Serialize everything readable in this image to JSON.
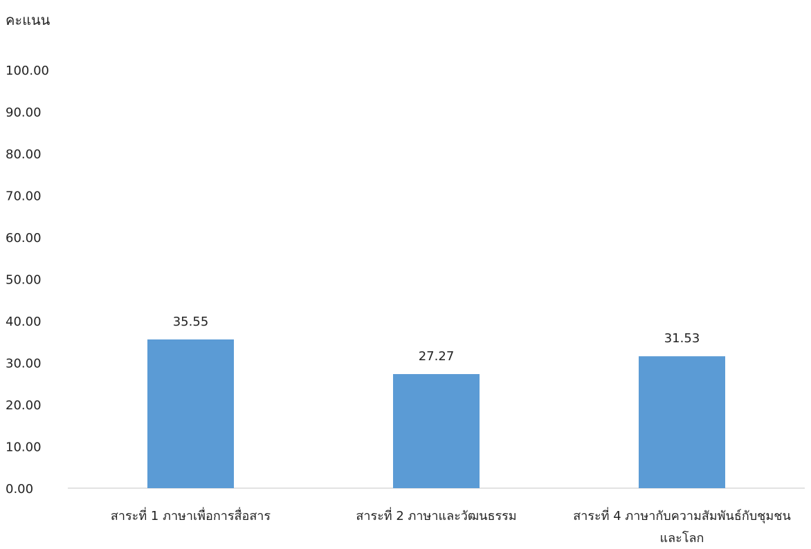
{
  "chart_data": {
    "type": "bar",
    "ylabel": "คะแนน",
    "categories": [
      [
        "สาระที่ 1 ภาษาเพื่อการสื่อสาร"
      ],
      [
        "สาระที่ 2 ภาษาและวัฒนธรรม"
      ],
      [
        "สาระที่ 4 ภาษากับความสัมพันธ์กับชุมชน",
        "และโลก"
      ]
    ],
    "values": [
      35.55,
      27.27,
      31.53
    ],
    "value_labels": [
      "35.55",
      "27.27",
      "31.53"
    ],
    "ylim": [
      0,
      100
    ],
    "yticks": [
      "0.00",
      "10.00",
      "20.00",
      "30.00",
      "40.00",
      "50.00",
      "60.00",
      "70.00",
      "80.00",
      "90.00",
      "100.00"
    ],
    "grid": false,
    "legend": "none",
    "colors": {
      "bar": "#5b9bd5",
      "axis": "#d9d9d9"
    }
  }
}
